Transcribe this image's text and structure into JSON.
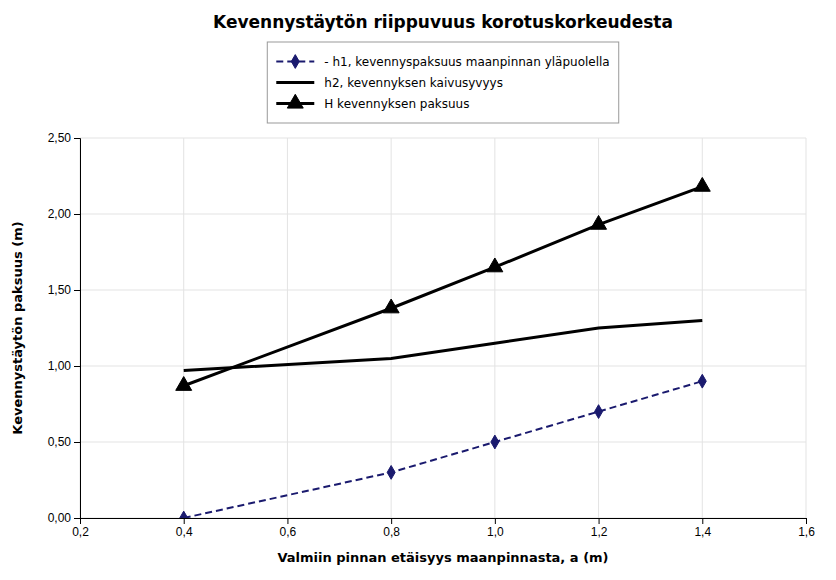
{
  "chart_data": {
    "type": "line",
    "title": "Kevennystäytön riippuvuus korotuskorkeudesta",
    "xlabel": "Valmiin pinnan etäisyys maanpinnasta, a (m)",
    "ylabel": "Kevennystäytön paksuus (m)",
    "x": [
      0.4,
      0.8,
      1.0,
      1.2,
      1.4
    ],
    "series": [
      {
        "name": "- h1, kevennyspaksuus maanpinnan yläpuolella",
        "color": "#1a1a6e",
        "line_style": "dashed",
        "marker": "diamond",
        "values": [
          0.0,
          0.3,
          0.5,
          0.7,
          0.9
        ]
      },
      {
        "name": "h2, kevennyksen kaivusyvyys",
        "color": "#000000",
        "line_style": "solid",
        "values": [
          0.97,
          1.05,
          1.15,
          1.25,
          1.3
        ]
      },
      {
        "name": "H kevennyksen paksuus",
        "color": "#000000",
        "line_style": "solid",
        "marker": "triangle",
        "values": [
          0.87,
          1.38,
          1.65,
          1.93,
          2.18
        ]
      }
    ],
    "xlim": [
      0.2,
      1.6
    ],
    "ylim": [
      0.0,
      2.5
    ],
    "xticks": [
      {
        "value": 0.2,
        "label": "0,2"
      },
      {
        "value": 0.4,
        "label": "0,4"
      },
      {
        "value": 0.6,
        "label": "0,6"
      },
      {
        "value": 0.8,
        "label": "0,8"
      },
      {
        "value": 1.0,
        "label": "1,0"
      },
      {
        "value": 1.2,
        "label": "1,2"
      },
      {
        "value": 1.4,
        "label": "1,4"
      },
      {
        "value": 1.6,
        "label": "1,6"
      }
    ],
    "yticks": [
      {
        "value": 0.0,
        "label": "0,00"
      },
      {
        "value": 0.5,
        "label": "0,50"
      },
      {
        "value": 1.0,
        "label": "1,00"
      },
      {
        "value": 1.5,
        "label": "1,50"
      },
      {
        "value": 2.0,
        "label": "2,00"
      },
      {
        "value": 2.5,
        "label": "2,50"
      }
    ],
    "grid": true,
    "legend": "top"
  }
}
